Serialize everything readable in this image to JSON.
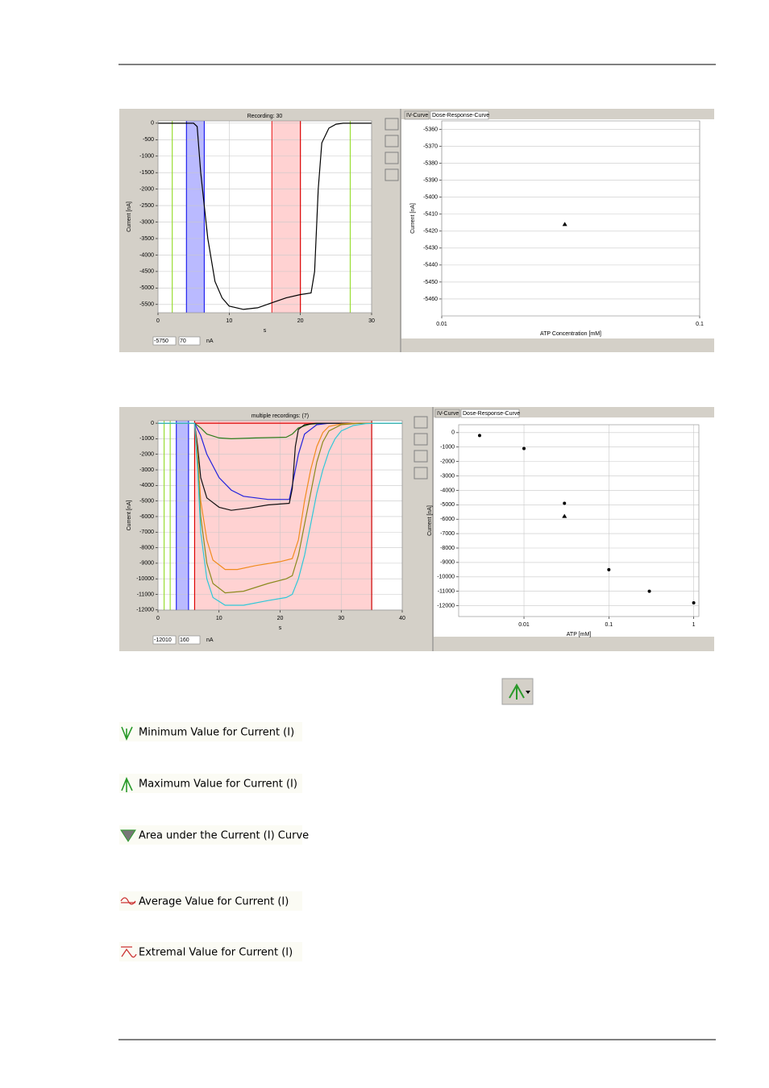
{
  "screenshot_1": {
    "trace": {
      "type": "line",
      "title": "Recording: 30",
      "y_label": "Current [nA]",
      "x_label": "s",
      "xlim": [
        0,
        30
      ],
      "ylim": [
        -5750,
        70
      ],
      "xticks": [
        0,
        10,
        20,
        30
      ],
      "yticks": [
        0,
        -500,
        -1000,
        -1500,
        -2000,
        -2500,
        -3000,
        -3500,
        -4000,
        -4500,
        -5000,
        -5500
      ],
      "grid": true,
      "regions": [
        {
          "color": "#6666ff",
          "x": [
            4,
            6.5
          ]
        },
        {
          "color": "#ff9c9c",
          "x": [
            16,
            20
          ]
        }
      ],
      "cursors": [
        {
          "color": "#99dd33",
          "x": 2
        },
        {
          "color": "#2222ee",
          "x": 4
        },
        {
          "color": "#2222ee",
          "x": 6.5
        },
        {
          "color": "#ee3333",
          "x": 16
        },
        {
          "color": "#dd0000",
          "x": 20
        },
        {
          "color": "#99dd33",
          "x": 27
        }
      ],
      "series": [
        {
          "color": "#000000",
          "x": [
            0,
            5,
            5.5,
            6,
            7,
            8,
            9,
            10,
            12,
            14,
            16,
            18,
            20,
            21.5,
            22,
            22.5,
            23,
            24,
            25,
            26,
            30
          ],
          "values": [
            0,
            0,
            -100,
            -1500,
            -3500,
            -4800,
            -5300,
            -5550,
            -5650,
            -5600,
            -5450,
            -5300,
            -5200,
            -5150,
            -4500,
            -2000,
            -600,
            -150,
            -30,
            0,
            0
          ]
        }
      ],
      "toolbar_unit": "nA"
    },
    "dose": {
      "type": "scatter",
      "tabs": [
        "IV-Curve",
        "Dose-Response-Curve"
      ],
      "y_label": "Current [nA]",
      "x_label": "ATP Concentration [mM]",
      "xlog": true,
      "xlim": [
        0.01,
        0.1
      ],
      "ylim": [
        -5470,
        -5355
      ],
      "xticks": [
        0.01,
        0.1
      ],
      "yticks": [
        -5360,
        -5370,
        -5380,
        -5390,
        -5400,
        -5410,
        -5420,
        -5430,
        -5440,
        -5450,
        -5460
      ],
      "grid": true,
      "series": [
        {
          "color": "#000000",
          "marker": "triangle",
          "x": [
            0.03
          ],
          "values": [
            -5416
          ]
        }
      ]
    }
  },
  "screenshot_2": {
    "trace": {
      "type": "line",
      "title": "multiple recordings: (7)",
      "y_label": "Current [nA]",
      "x_label": "s",
      "xlim": [
        0,
        40
      ],
      "ylim": [
        -12010,
        160
      ],
      "xticks": [
        0,
        10,
        20,
        30,
        40
      ],
      "yticks": [
        0,
        -1000,
        -2000,
        -3000,
        -4000,
        -5000,
        -6000,
        -7000,
        -8000,
        -9000,
        -10000,
        -11000,
        -12000
      ],
      "grid": true,
      "regions": [
        {
          "color": "#6666ff",
          "x": [
            3,
            5
          ]
        },
        {
          "color": "#ff9c9c",
          "x": [
            6,
            35
          ]
        }
      ],
      "cursors": [
        {
          "color": "#99dd33",
          "x": 1
        },
        {
          "color": "#99dd33",
          "x": 2
        },
        {
          "color": "#2222ee",
          "x": 3
        },
        {
          "color": "#2222ee",
          "x": 5
        },
        {
          "color": "#dd0000",
          "x": 6
        },
        {
          "color": "#cc0000",
          "x": 35
        }
      ],
      "series": [
        {
          "color": "#dd0000",
          "x": [
            0,
            40
          ],
          "values": [
            0,
            0
          ]
        },
        {
          "color": "#2e7d1e",
          "x": [
            0,
            6,
            7,
            8,
            10,
            12,
            16,
            21,
            22,
            23,
            25,
            28,
            40
          ],
          "values": [
            0,
            0,
            -300,
            -700,
            -950,
            -1000,
            -950,
            -900,
            -700,
            -300,
            -50,
            0,
            0
          ]
        },
        {
          "color": "#2222dd",
          "x": [
            0,
            6,
            7,
            8,
            10,
            12,
            14,
            18,
            21.5,
            22,
            23,
            24,
            26,
            28,
            40
          ],
          "values": [
            0,
            0,
            -800,
            -2000,
            -3500,
            -4300,
            -4700,
            -4900,
            -4900,
            -4000,
            -2000,
            -700,
            -100,
            0,
            0
          ]
        },
        {
          "color": "#111111",
          "x": [
            0,
            6,
            6.5,
            7,
            8,
            10,
            12,
            15,
            18,
            21.5,
            22,
            22.5,
            23,
            24,
            26,
            40
          ],
          "values": [
            0,
            0,
            -1500,
            -3500,
            -4800,
            -5400,
            -5600,
            -5450,
            -5250,
            -5150,
            -4200,
            -1500,
            -400,
            -100,
            0,
            0
          ]
        },
        {
          "color": "#f08c1e",
          "x": [
            0,
            6,
            6.5,
            7,
            8,
            9,
            11,
            13,
            16,
            20,
            22,
            23,
            24,
            25,
            26,
            27,
            28,
            30,
            32,
            40
          ],
          "values": [
            0,
            0,
            -2000,
            -5000,
            -7500,
            -8800,
            -9400,
            -9400,
            -9150,
            -8900,
            -8700,
            -7500,
            -5000,
            -3000,
            -1500,
            -600,
            -200,
            -50,
            0,
            0
          ]
        },
        {
          "color": "#8a8a1e",
          "x": [
            0,
            6,
            6.5,
            7,
            8,
            9,
            11,
            14,
            18,
            21,
            22,
            23,
            24,
            25,
            26,
            27,
            28,
            30,
            33,
            40
          ],
          "values": [
            0,
            0,
            -2500,
            -6000,
            -9000,
            -10300,
            -10900,
            -10800,
            -10300,
            -10000,
            -9800,
            -8500,
            -6500,
            -4500,
            -2500,
            -1200,
            -500,
            -100,
            0,
            0
          ]
        },
        {
          "color": "#2ec8d8",
          "x": [
            0,
            6,
            6.5,
            7,
            8,
            9,
            11,
            14,
            18,
            21,
            22,
            23,
            24,
            25,
            26,
            27,
            28,
            29,
            30,
            32,
            34,
            36,
            40
          ],
          "values": [
            0,
            0,
            -3000,
            -7000,
            -10000,
            -11200,
            -11700,
            -11700,
            -11400,
            -11200,
            -11000,
            -10000,
            -8500,
            -6500,
            -4500,
            -3000,
            -1800,
            -1000,
            -500,
            -150,
            -30,
            0,
            0
          ]
        }
      ],
      "toolbar_unit": "nA"
    },
    "dose": {
      "type": "scatter",
      "tabs": [
        "IV-Curve",
        "Dose-Response-Curve"
      ],
      "y_label": "Current [nA]",
      "x_label": "ATP [mM]",
      "xlog": true,
      "xlim": [
        0.0017,
        1.15
      ],
      "ylim": [
        -12750,
        550
      ],
      "xticks": [
        0.01,
        0.1,
        1
      ],
      "yticks": [
        0,
        -1000,
        -2000,
        -3000,
        -4000,
        -5000,
        -6000,
        -7000,
        -8000,
        -9000,
        -10000,
        -11000,
        -12000
      ],
      "grid": true,
      "series": [
        {
          "color": "#000000",
          "marker": "circle",
          "x": [
            0.003,
            0.01,
            0.03,
            0.1,
            0.3,
            1
          ],
          "values": [
            -200,
            -1100,
            -4900,
            -9500,
            -11000,
            -11800
          ]
        },
        {
          "color": "#000000",
          "marker": "triangle",
          "x": [
            0.03
          ],
          "values": [
            -5800
          ]
        }
      ]
    }
  },
  "menu_items": [
    "Minimum Value for Current (I)",
    "Maximum Value for Current (I)",
    "Area under the Current (I) Curve",
    "Average Value for Current (I)",
    "Extremal Value for Current (I)"
  ]
}
